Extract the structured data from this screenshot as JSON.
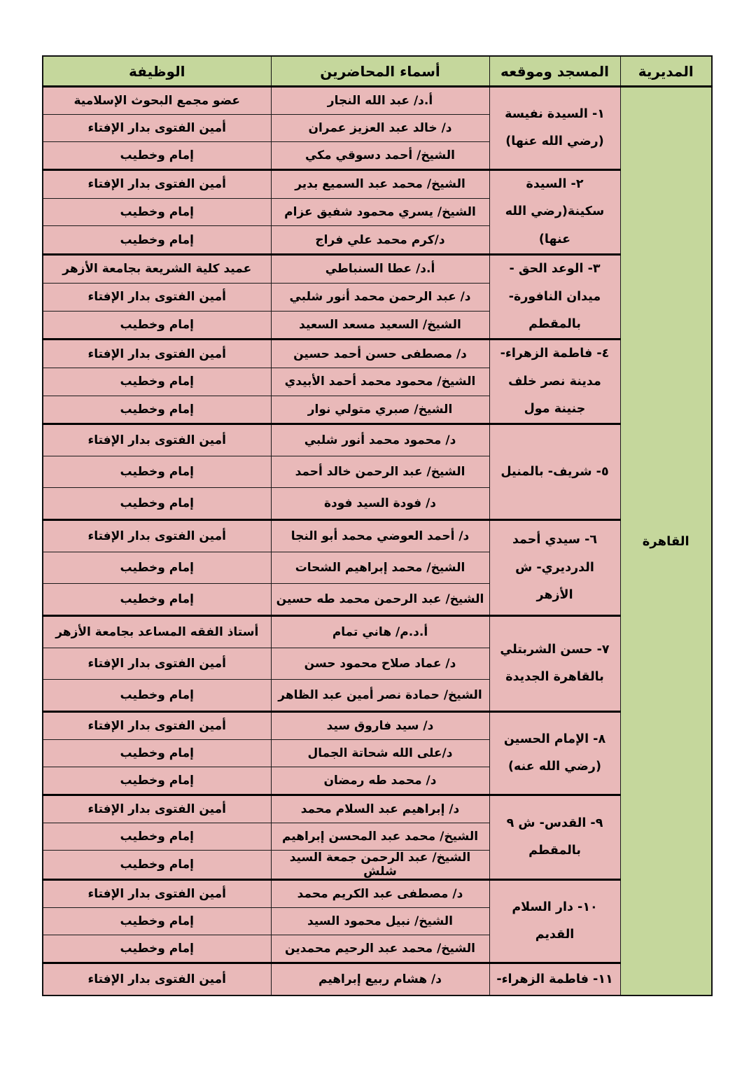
{
  "table": {
    "headers": {
      "directorate": "المديرية",
      "mosque": "المسجد وموقعه",
      "lecturers": "أسماء المحاضرين",
      "job": "الوظيفة"
    },
    "directorate": "القاهرة",
    "colors": {
      "header_green": "#c5d79c",
      "body_pink": "#e9b9b9",
      "border_black": "#000000"
    },
    "groups": [
      {
        "mosque": "١- السيدة نفيسة (رضي الله عنها)",
        "rows": [
          {
            "lecturer": "أ.د/ عبد الله النجار",
            "job": "عضو مجمع البحوث الإسلامية"
          },
          {
            "lecturer": "د/ خالد عبد العزيز عمران",
            "job": "أمين الفتوى بدار الإفتاء"
          },
          {
            "lecturer": "الشيخ/ أحمد دسوقي مكي",
            "job": "إمام وخطيب"
          }
        ]
      },
      {
        "mosque": "٢- السيدة سكينة(رضي الله عنها)",
        "rows": [
          {
            "lecturer": "الشيخ/ محمد عبد السميع بدير",
            "job": "أمين الفتوى بدار الإفتاء"
          },
          {
            "lecturer": "الشيخ/ يسري محمود شفيق عزام",
            "job": "إمام وخطيب"
          },
          {
            "lecturer": "د/كرم محمد علي فراج",
            "job": "إمام وخطيب"
          }
        ]
      },
      {
        "mosque": "٣- الوعد الحق - ميدان النافورة- بالمقطم",
        "rows": [
          {
            "lecturer": "أ.د/ عطا السنباطي",
            "job": "عميد كلية الشريعة بجامعة الأزهر"
          },
          {
            "lecturer": "د/ عبد الرحمن محمد أنور شلبي",
            "job": "أمين الفتوى بدار الإفتاء"
          },
          {
            "lecturer": "الشيخ/ السعيد مسعد السعيد",
            "job": "إمام وخطيب"
          }
        ]
      },
      {
        "mosque": "٤- فاطمة الزهراء- مدينة نصر خلف جنينة مول",
        "rows": [
          {
            "lecturer": "د/ مصطفى حسن أحمد حسين",
            "job": "أمين الفتوى بدار الإفتاء"
          },
          {
            "lecturer": "الشيخ/ محمود محمد أحمد الأبيدي",
            "job": "إمام وخطيب"
          },
          {
            "lecturer": "الشيخ/ صبري متولي نوار",
            "job": "إمام وخطيب"
          }
        ]
      },
      {
        "mosque": "٥- شريف- بالمنيل",
        "rows": [
          {
            "lecturer": "د/ محمود محمد أنور شلبي",
            "job": "أمين الفتوى بدار الإفتاء"
          },
          {
            "lecturer": "الشيخ/ عبد الرحمن خالد أحمد",
            "job": "إمام وخطيب"
          },
          {
            "lecturer": "د/ فودة السيد فودة",
            "job": "إمام وخطيب"
          }
        ]
      },
      {
        "mosque": "٦- سيدي أحمد الدرديري- ش الأزهر",
        "rows": [
          {
            "lecturer": "د/ أحمد العوضي محمد أبو النجا",
            "job": "أمين الفتوى بدار الإفتاء"
          },
          {
            "lecturer": "الشيخ/ محمد إبراهيم الشحات",
            "job": "إمام وخطيب"
          },
          {
            "lecturer": "الشيخ/ عبد الرحمن محمد طه حسين",
            "job": "إمام وخطيب"
          }
        ]
      },
      {
        "mosque": "٧- حسن الشربتلي بالقاهرة الجديدة",
        "rows": [
          {
            "lecturer": "أ.د.م/ هاني تمام",
            "job": "أستاذ الفقه المساعد بجامعة الأزهر"
          },
          {
            "lecturer": "د/ عماد صلاح محمود حسن",
            "job": "أمين الفتوى بدار الإفتاء"
          },
          {
            "lecturer": "الشيخ/ حمادة نصر أمين عبد الظاهر",
            "job": "إمام وخطيب"
          }
        ]
      },
      {
        "mosque": "٨- الإمام الحسين (رضي الله عنه)",
        "rows": [
          {
            "lecturer": "د/ سيد فاروق سيد",
            "job": "أمين الفتوى بدار الإفتاء"
          },
          {
            "lecturer": "د/على الله شحاتة الجمال",
            "job": "إمام وخطيب"
          },
          {
            "lecturer": "د/ محمد طه رمضان",
            "job": "إمام وخطيب"
          }
        ]
      },
      {
        "mosque": "٩- القدس- ش ٩ بالمقطم",
        "rows": [
          {
            "lecturer": "د/ إبراهيم عبد السلام محمد",
            "job": "أمين الفتوى بدار الإفتاء"
          },
          {
            "lecturer": "الشيخ/ محمد عبد المحسن إبراهيم",
            "job": "إمام وخطيب"
          },
          {
            "lecturer": "الشيخ/ عبد الرحمن جمعة السيد شلش",
            "job": "إمام وخطيب"
          }
        ]
      },
      {
        "mosque": "١٠- دار السلام القديم",
        "rows": [
          {
            "lecturer": "د/ مصطفى عبد الكريم محمد",
            "job": "أمين الفتوى بدار الإفتاء"
          },
          {
            "lecturer": "الشيخ/ نبيل محمود السيد",
            "job": "إمام وخطيب"
          },
          {
            "lecturer": "الشيخ/ محمد عبد الرحيم محمدين",
            "job": "إمام وخطيب"
          }
        ]
      },
      {
        "mosque": "١١- فاطمة الزهراء-",
        "rows": [
          {
            "lecturer": "د/ هشام ربيع إبراهيم",
            "job": "أمين الفتوى بدار الإفتاء"
          }
        ]
      }
    ]
  }
}
